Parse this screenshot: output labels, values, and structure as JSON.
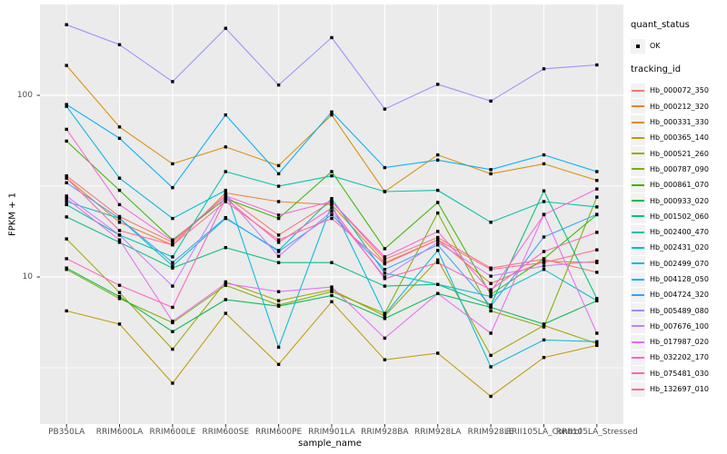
{
  "chart_data": {
    "type": "line",
    "title": "",
    "xlabel": "sample_name",
    "ylabel": "FPKM + 1",
    "y_scale": "log10",
    "ylim": [
      1.55,
      316
    ],
    "y_tick_values": [
      100,
      10
    ],
    "y_tick_labels": [
      "100",
      "10"
    ],
    "y_minor_values": [
      31.62,
      3.162
    ],
    "grid": true,
    "legend_position": "right",
    "categories": [
      "PB350LA",
      "RRIM600LA",
      "RRIM600LE",
      "RRIM600SE",
      "RRIM600PE",
      "RRIM901LA",
      "RRIM928BA",
      "RRIM928LA",
      "RRIM928LE",
      "RRII105LA_Control",
      "RRII105LA_Stressed"
    ],
    "series": [
      {
        "name": "Hb_000072_350",
        "color": "#F8766D",
        "values": [
          36,
          21.5,
          15.5,
          28,
          17,
          26,
          12.5,
          16.5,
          11.2,
          12.5,
          10.6
        ]
      },
      {
        "name": "Hb_000212_320",
        "color": "#EA8331",
        "values": [
          35,
          20,
          15,
          29,
          26,
          25,
          12,
          16,
          9.2,
          12.2,
          12
        ]
      },
      {
        "name": "Hb_000331_330",
        "color": "#D89000",
        "values": [
          146,
          67,
          42,
          52,
          41,
          78,
          29.5,
          47,
          37,
          42,
          34
        ]
      },
      {
        "name": "Hb_000365_140",
        "color": "#C09B00",
        "values": [
          6.5,
          5.5,
          2.6,
          6.3,
          3.3,
          7.3,
          3.5,
          3.8,
          2.2,
          3.6,
          4.2
        ]
      },
      {
        "name": "Hb_000521_260",
        "color": "#A3A500",
        "values": [
          16.2,
          8.2,
          4,
          9.4,
          7.4,
          8.5,
          6.1,
          12.4,
          3.7,
          5.4,
          4.3
        ]
      },
      {
        "name": "Hb_000787_090",
        "color": "#7CAE00",
        "values": [
          11,
          7.6,
          5.6,
          9,
          7,
          8.3,
          6.3,
          22.5,
          6.5,
          5.3,
          27.5
        ]
      },
      {
        "name": "Hb_000861_070",
        "color": "#39B600",
        "values": [
          56,
          30,
          16,
          27,
          21,
          38,
          14.3,
          25.7,
          8,
          12.6,
          22
        ]
      },
      {
        "name": "Hb_000933_020",
        "color": "#00BB4E",
        "values": [
          11.2,
          7.8,
          5,
          7.5,
          6.9,
          7.9,
          5.9,
          8.1,
          6.8,
          5.5,
          7.4
        ]
      },
      {
        "name": "Hb_001502_060",
        "color": "#00BF7D",
        "values": [
          21.4,
          15.5,
          11.2,
          14.5,
          12,
          12,
          8.9,
          9.1,
          7,
          29.8,
          7.6
        ]
      },
      {
        "name": "Hb_002400_470",
        "color": "#00C1A3",
        "values": [
          25,
          17,
          12.9,
          38,
          31.6,
          36,
          29.5,
          30,
          20,
          26,
          24.3
        ]
      },
      {
        "name": "Hb_002431_020",
        "color": "#00BFC4",
        "values": [
          26,
          21,
          11.5,
          21,
          14,
          27,
          10.5,
          9.1,
          7.8,
          11,
          7.4
        ]
      },
      {
        "name": "Hb_002499_070",
        "color": "#00BBDA",
        "values": [
          87,
          35,
          21,
          30,
          4.1,
          25,
          6.2,
          14,
          3.2,
          4.5,
          4.4
        ]
      },
      {
        "name": "Hb_004128_050",
        "color": "#00B0F6",
        "values": [
          89,
          58,
          31,
          78,
          37,
          81,
          40,
          44,
          39,
          47,
          38
        ]
      },
      {
        "name": "Hb_004724_320",
        "color": "#35A2FF",
        "values": [
          33,
          21,
          12,
          21.2,
          13.8,
          22,
          11,
          15,
          6.9,
          16.6,
          22.1
        ]
      },
      {
        "name": "Hb_005489_080",
        "color": "#9590FF",
        "values": [
          245,
          190,
          119,
          234,
          114,
          208,
          84,
          115,
          93,
          140,
          147
        ]
      },
      {
        "name": "Hb_007676_100",
        "color": "#C77CFF",
        "values": [
          27.9,
          17,
          8.9,
          28,
          13,
          23,
          10,
          15.5,
          10.1,
          11.5,
          12.2
        ]
      },
      {
        "name": "Hb_017987_020",
        "color": "#E76BF3",
        "values": [
          27,
          16,
          5.7,
          9.2,
          8.3,
          8.8,
          4.6,
          8.1,
          4.9,
          22.1,
          4.9
        ]
      },
      {
        "name": "Hb_032202_170",
        "color": "#FA62DB",
        "values": [
          65,
          25,
          15.8,
          28,
          21.9,
          26,
          12.9,
          17.8,
          8.3,
          22,
          30.5
        ]
      },
      {
        "name": "Hb_075481_030",
        "color": "#FF62BC",
        "values": [
          12.6,
          9,
          6.8,
          27,
          15.5,
          24,
          9.8,
          12,
          8.5,
          13.8,
          17.6
        ]
      },
      {
        "name": "Hb_132697_010",
        "color": "#FF6A98",
        "values": [
          35,
          18,
          15,
          26,
          16,
          21,
          11.8,
          16,
          11,
          12,
          14.1
        ]
      }
    ]
  },
  "legend": {
    "quant_status_title": "quant_status",
    "quant_status_items": [
      "OK"
    ],
    "tracking_title": "tracking_id"
  },
  "style": {
    "panel_bg": "#EBEBEB",
    "grid_color": "#FFFFFF",
    "tick_color": "#333333",
    "tick_label_color": "#4D4D4D",
    "text_color": "#000000",
    "marker_color": "#000000",
    "legend_key_bg": "#F2F2F2"
  }
}
